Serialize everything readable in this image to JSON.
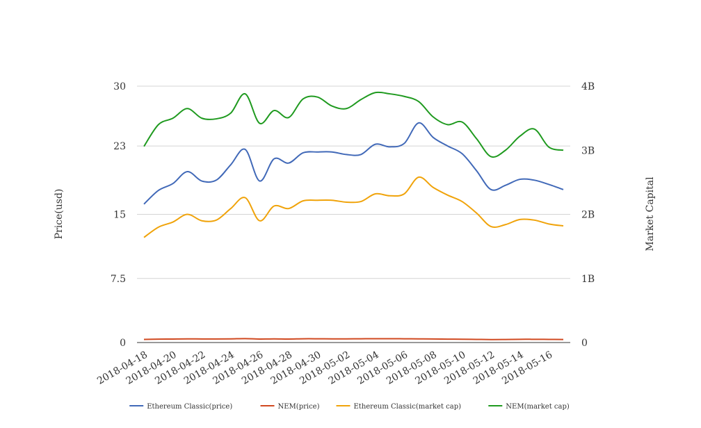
{
  "chart_data": {
    "type": "line",
    "x": [
      "2018-04-18",
      "2018-04-19",
      "2018-04-20",
      "2018-04-21",
      "2018-04-22",
      "2018-04-23",
      "2018-04-24",
      "2018-04-25",
      "2018-04-26",
      "2018-04-27",
      "2018-04-28",
      "2018-04-29",
      "2018-04-30",
      "2018-05-01",
      "2018-05-02",
      "2018-05-03",
      "2018-05-04",
      "2018-05-05",
      "2018-05-06",
      "2018-05-07",
      "2018-05-08",
      "2018-05-09",
      "2018-05-10",
      "2018-05-11",
      "2018-05-12",
      "2018-05-13",
      "2018-05-14",
      "2018-05-15",
      "2018-05-16",
      "2018-05-17"
    ],
    "x_tick_labels": [
      "2018-04-18",
      "2018-04-20",
      "2018-04-22",
      "2018-04-24",
      "2018-04-26",
      "2018-04-28",
      "2018-04-30",
      "2018-05-02",
      "2018-05-04",
      "2018-05-06",
      "2018-05-08",
      "2018-05-10",
      "2018-05-12",
      "2018-05-14",
      "2018-05-16"
    ],
    "y_left": {
      "label": "Price(usd)",
      "ticks": [
        0,
        7.5,
        15,
        23,
        30
      ],
      "tick_labels": [
        "0",
        "7.5",
        "15",
        "23",
        "30"
      ],
      "range": [
        0,
        30
      ]
    },
    "y_right": {
      "label": "Market Capital",
      "ticks": [
        0,
        1000000000,
        2000000000,
        3000000000,
        4000000000
      ],
      "tick_labels": [
        "0",
        "1B",
        "2B",
        "3B",
        "4B"
      ],
      "range": [
        0,
        4000000000
      ]
    },
    "grid": true,
    "legend_position": "bottom",
    "series": [
      {
        "name": "Ethereum Classic(price)",
        "axis": "left",
        "color": "#4169b8",
        "values": [
          16.2,
          17.8,
          18.6,
          20.0,
          18.9,
          19.0,
          20.8,
          22.6,
          18.9,
          21.5,
          21.0,
          22.2,
          22.3,
          22.3,
          22.0,
          22.0,
          23.2,
          22.9,
          23.3,
          25.7,
          24.0,
          23.0,
          22.1,
          20.1,
          17.9,
          18.4,
          19.1,
          19.0,
          18.5,
          17.9
        ]
      },
      {
        "name": "NEM(price)",
        "axis": "left",
        "color": "#d0481f",
        "values": [
          0.37,
          0.4,
          0.41,
          0.43,
          0.42,
          0.42,
          0.43,
          0.46,
          0.41,
          0.43,
          0.41,
          0.44,
          0.44,
          0.43,
          0.43,
          0.44,
          0.45,
          0.45,
          0.44,
          0.43,
          0.42,
          0.4,
          0.39,
          0.37,
          0.35,
          0.36,
          0.38,
          0.38,
          0.37,
          0.36
        ]
      },
      {
        "name": "Ethereum Classic(market cap)",
        "axis": "right",
        "color": "#f0a30a",
        "values": [
          1640000000,
          1800000000,
          1880000000,
          2000000000,
          1900000000,
          1910000000,
          2090000000,
          2260000000,
          1900000000,
          2130000000,
          2090000000,
          2210000000,
          2220000000,
          2220000000,
          2190000000,
          2200000000,
          2320000000,
          2290000000,
          2320000000,
          2580000000,
          2420000000,
          2300000000,
          2200000000,
          2020000000,
          1810000000,
          1840000000,
          1920000000,
          1910000000,
          1850000000,
          1820000000
        ]
      },
      {
        "name": "NEM(market cap)",
        "axis": "right",
        "color": "#1f9a1f",
        "values": [
          3060000000,
          3400000000,
          3500000000,
          3650000000,
          3500000000,
          3490000000,
          3580000000,
          3880000000,
          3420000000,
          3620000000,
          3510000000,
          3800000000,
          3830000000,
          3690000000,
          3650000000,
          3790000000,
          3900000000,
          3880000000,
          3840000000,
          3760000000,
          3520000000,
          3400000000,
          3440000000,
          3180000000,
          2900000000,
          3000000000,
          3220000000,
          3330000000,
          3050000000,
          3000000000
        ]
      }
    ]
  }
}
